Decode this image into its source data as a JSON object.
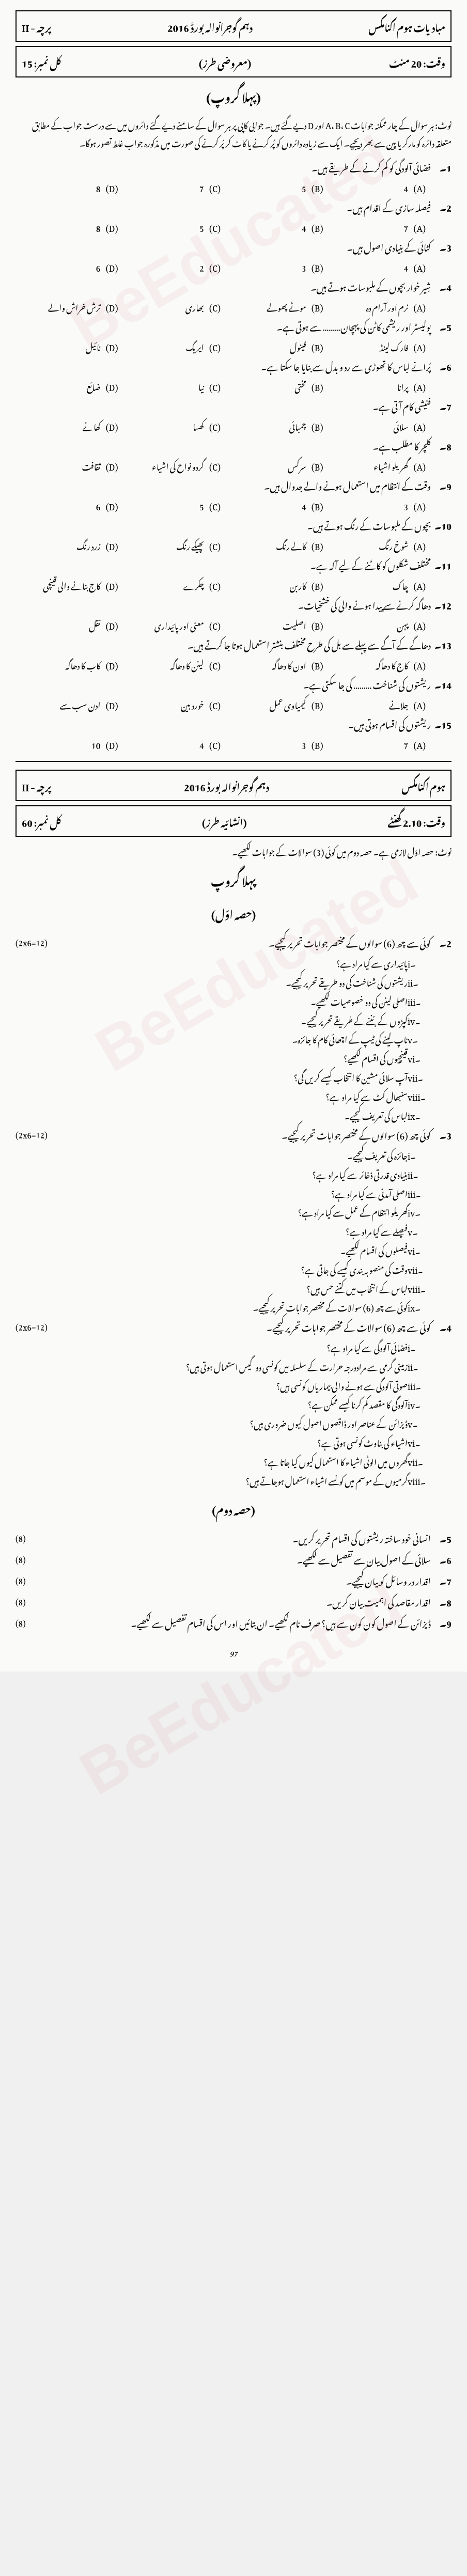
{
  "header1": {
    "paper": "پرچہ - II",
    "board": "دہم گوجرانوالہ بورڈ 2016",
    "type": "(معروضی طرز)",
    "total": "کل نمبر: 15",
    "subject": "مبادیات ہوم اکنامکس",
    "time": "وقت: 20 منٹ"
  },
  "group_title": "(پہلا گروپ)",
  "note": "نوٹ: ہر سوال کے چار ممکنہ جوابات A، B، C اور D دیے گئے ہیں۔ جوابی کاپی پر ہر سوال کے سامنے دیے گئے دائروں میں سے درست جواب کے مطابق متعلقہ دائرہ کو مارکر یا پین سے بھر دیجیے۔ ایک سے زیادہ دائروں کو پُر کرنے یا کاٹ کر پُر کرنے کی صورت میں مذکورہ جواب غلط تصور ہوگا۔",
  "mcqs": [
    {
      "num": "1۔",
      "q": "فضائی آلودگی کو کم کرنے کے طریقے ہیں۔",
      "opts": [
        "4",
        "5",
        "7",
        "8"
      ]
    },
    {
      "num": "2۔",
      "q": "فیصلہ سازی کے اقدام ہیں۔",
      "opts": [
        "7",
        "4",
        "5",
        "8"
      ]
    },
    {
      "num": "3۔",
      "q": "کٹائی کے بنیادی اصول ہیں۔",
      "opts": [
        "4",
        "3",
        "2",
        "6"
      ]
    },
    {
      "num": "4۔",
      "q": "شِیر خوار بچوں کے ملبوسات ہوتے ہیں۔",
      "opts": [
        "نرم اور آرام دہ",
        "موٹے پھولے",
        "بھاری",
        "ترش خراش والے"
      ]
    },
    {
      "num": "5۔",
      "q": "پولیسٹر اور ریشمی کاٹن کی پہچان……… سے ہوتی ہے۔",
      "opts": [
        "فارک لینڈ",
        "فینول",
        "ایریگ",
        "نائیل"
      ]
    },
    {
      "num": "6۔",
      "q": "پُرانے لباس کا تھوڑی سے رد و بدل سے بنایا جا سکتا ہے۔",
      "opts": [
        "پرانا",
        "مختی",
        "نیا",
        "ضائع"
      ]
    },
    {
      "num": "7۔",
      "q": "فنیشی کام آتی ہے۔",
      "opts": [
        "سلائی",
        "چمبائی",
        "کھسا",
        "کھانے"
      ]
    },
    {
      "num": "8۔",
      "q": "کلچر کا مطلب ہے۔",
      "opts": [
        "گھریلو اشیاء",
        "سرکس",
        "گردو نواح کی اشیاء",
        "ثقافت"
      ]
    },
    {
      "num": "9۔",
      "q": "وقت کے انتظام میں استعمال ہونے والے جدوال ہیں۔",
      "opts": [
        "3",
        "4",
        "5",
        "6"
      ]
    },
    {
      "num": "10۔",
      "q": "بچوں کے ملبوسات کے رنگ ہوتے ہیں۔",
      "opts": [
        "شوخ رنگ",
        "کالے رنگ",
        "پھیکے رنگ",
        "زرد رنگ"
      ]
    },
    {
      "num": "11۔",
      "q": "مختلف شکلوں کو کاٹنے کے لیے آلہ ہے۔",
      "opts": [
        "چاک",
        "کاربن",
        "چکرے",
        "کاج بنانے والی قینچی"
      ]
    },
    {
      "num": "12۔",
      "q": "دھاگہ کرنے سے پیدا ہونے والی کی خشخیات۔",
      "opts": [
        "پہن",
        "اصلیت",
        "معنی اور پائیداری",
        "نقل"
      ]
    },
    {
      "num": "13۔",
      "q": "دھاگے کے آگے سے پہلے سے بل کی طرح مختلف بنشتر استعمال ہوتا جا کرتے ہیں۔",
      "opts": [
        "کاج کا دھاگہ",
        "اون کا دھاگہ",
        "لینن کا دھاگہ",
        "کاب کا دھاگہ"
      ]
    },
    {
      "num": "14۔",
      "q": "ریشتوں کی شناخت ……… کی جا سکتی ہے۔",
      "opts": [
        "جلانے",
        "کیمیاوی عمل",
        "خورد بین",
        "ادن سب سے"
      ]
    },
    {
      "num": "15۔",
      "q": "ریشتوں کی اقسام ہوتی ہیں۔",
      "opts": [
        "7",
        "3",
        "4",
        "10"
      ]
    }
  ],
  "header2": {
    "paper": "پرچہ - II",
    "board": "دہم گوجرانوالہ بورڈ 2016",
    "type": "(انشائیہ طرز)",
    "total": "کل نمبر: 60",
    "subject": "ہوم اکنامکس",
    "time": "وقت: 2.10 گھنٹے"
  },
  "note2": "نوٹ: حصہ اوّل لازمی ہے۔ حصہ دوم میں کوئی (3) سوالات کے جوابات لکھیے۔",
  "group2": "پہلا گروپ",
  "part1": "(حصہ اوّل)",
  "q2": {
    "num": "2۔",
    "text": "کوئی سے چھ (6) سوالوں کے مختصر جوابات تحریر کیجیے۔",
    "marks": "(2x6=12)"
  },
  "q2subs": [
    {
      "n": "i۔",
      "t": "پائیداری سے کیا مراد ہے؟"
    },
    {
      "n": "ii۔",
      "t": "ریشتوں کی شناخت کی دو طریقے تحریر کیجیے۔"
    },
    {
      "n": "iii۔",
      "t": "اصلی لینن کی دو خصوصیات لکھیے۔"
    },
    {
      "n": "iv۔",
      "t": "کپڑوں کے بُننے کے طریقے تحریر کیجیے۔"
    },
    {
      "n": "v۔",
      "t": "ناپ لینے کی ٹیپ کے اچھائی کام کا جائزہ۔"
    },
    {
      "n": "vi۔",
      "t": "قینچیوں کی اقسام لکھیے؟"
    },
    {
      "n": "vii۔",
      "t": "آپ سلائی مشین کا انتخاب کیسے کریں گی؟"
    },
    {
      "n": "viii۔",
      "t": "سنبھال کٹ سے کیا مراد ہے؟"
    },
    {
      "n": "ix۔",
      "t": "لباس کی تعریف کیجیے۔"
    }
  ],
  "q3": {
    "num": "3۔",
    "text": "کوئی چھ (6) سوالوں کے مختصر جوابات تحریر کیجیے۔",
    "marks": "(2x6=12)"
  },
  "q3subs": [
    {
      "n": "i۔",
      "t": "جائزه کی تعریف کیجیے۔"
    },
    {
      "n": "ii۔",
      "t": "بنیادی قدرتی ذخائر سے کیا مراد ہے؟"
    },
    {
      "n": "iii۔",
      "t": "اصلی آمدنی سے کیا مراد ہے؟"
    },
    {
      "n": "iv۔",
      "t": "گھریلو انتظام کے عمل سے کیا مراد ہے؟"
    },
    {
      "n": "v۔",
      "t": "فیصلے سے کیا مراد ہے؟"
    },
    {
      "n": "vi۔",
      "t": "فیصلوں کی اقسام لکھیے۔"
    },
    {
      "n": "vii۔",
      "t": "وقت کی منصوبہ بندی کیسے کی جاتی ہے؟"
    },
    {
      "n": "viii۔",
      "t": "لباس کے انتخاب میں کتنے حس ہیں؟"
    },
    {
      "n": "ix۔",
      "t": "کوئی سے چھ (6) سوالات کے مختصر جوابات تحریر کیجیے۔"
    }
  ],
  "q4": {
    "num": "4۔",
    "text": "کوئی سے چھ (6) سوالات کے مختصر جوابات تحریر کیجیے۔",
    "marks": "(2x6=12)"
  },
  "q4subs": [
    {
      "n": "i۔",
      "t": "فضائی آلودگی سے کیا مراد ہے؟"
    },
    {
      "n": "ii۔",
      "t": "زمینی گرمی سے مراددرجہ حرارت کے سلسلہ میں کونسی دوگیس استعمال ہوتی ہیں؟"
    },
    {
      "n": "iii۔",
      "t": "صوتی آلودگی سے ہونے والی بیماریاں کونسی ہیں؟"
    },
    {
      "n": "iv۔",
      "t": "آلودگی کا مقصد کم کرنا کیسے ممکن ہے؟"
    },
    {
      "n": "v۔",
      "t": "ڈیزائن کے عناصر اور ڈاقصوں اصول کیوں ضروری ہیں؟"
    },
    {
      "n": "vi۔",
      "t": "اشیاء کی بناوٹ کونسی ہوتی ہے؟"
    },
    {
      "n": "vii۔",
      "t": "گھروں میں الوٹی اشیاء کا استعمال کیوں کیا جاتا ہے؟"
    },
    {
      "n": "viii۔",
      "t": "گرمیوں کے موسم میں کونسے اشیاء استعمال ہوجاتے ہیں؟"
    }
  ],
  "part2": "(حصہ دوم)",
  "longq": [
    {
      "n": "5۔",
      "t": "انسانی خود ساختہ ریشتوں کی اقسام تحریر کریں۔",
      "m": "(8)"
    },
    {
      "n": "6۔",
      "t": "سلائی کے اصول بیان سے تفصیل سے لکھیے۔",
      "m": "(8)"
    },
    {
      "n": "7۔",
      "t": "اقدار در وسائل کو بیان کیجیے۔",
      "m": "(8)"
    },
    {
      "n": "8۔",
      "t": "اقدار مقاصد کی اہمیت بیان کریں۔",
      "m": "(8)"
    },
    {
      "n": "9۔",
      "t": "ڈیزائن کے اصول کون کون سے ہیں؟ صرف نام لکھیے۔ ان بتائیں اور اس کی اقسام تفصیل سے لکھیے۔",
      "m": "(8)"
    }
  ],
  "pagenum": "97"
}
